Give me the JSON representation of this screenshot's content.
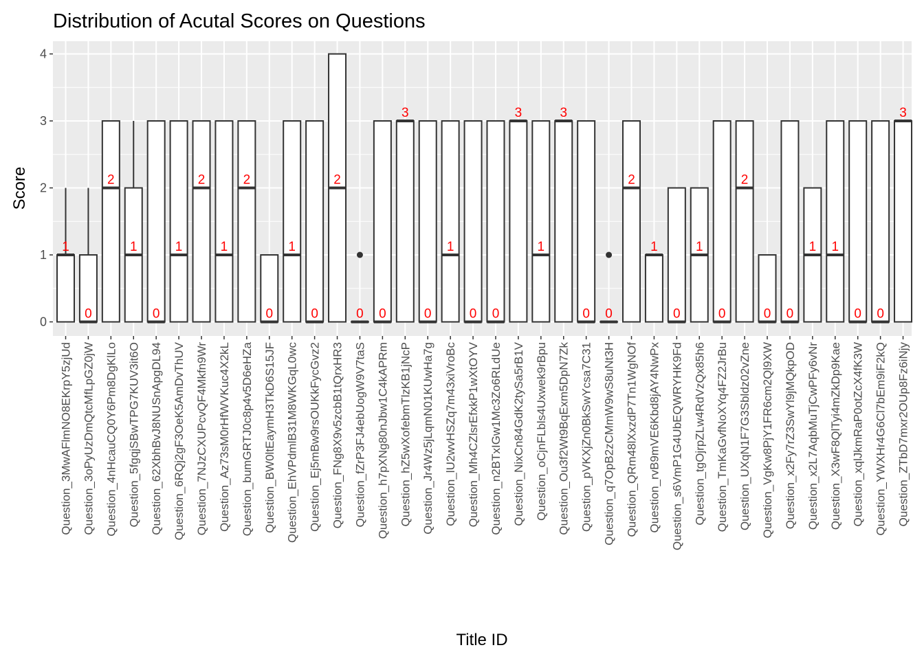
{
  "chart_data": {
    "type": "boxplot",
    "title": "Distribution of Acutal Scores on Questions",
    "xlabel": "Title ID",
    "ylabel": "Score",
    "ylim": [
      -0.18,
      4.18
    ],
    "yticks": [
      "0",
      "1",
      "2",
      "3",
      "4"
    ],
    "grid": true,
    "legend": "none",
    "colors": {
      "panel_background": "#ebebeb",
      "grid": "#ffffff",
      "box_fill": "#ffffff",
      "box_outline": "#333333",
      "median_label": "#ff0000",
      "tick_label": "#4d4d4d"
    },
    "categories": [
      "Question_3MwAFlmNO8EKrpY5zjUd",
      "Question_3oPyUzDmQtcMfLpGZ0jW",
      "Question_4nHcauCQ0Y6Pm8DgKlLo",
      "Question_5fgqjSBwTPG7KUV3it6O",
      "Question_62XbhBvJ8NUSnApgDL94",
      "Question_6RQj2gF3OeK5AmDvThUV",
      "Question_7NJzCXUPcvQF4Mkfn9Wr",
      "Question_Az73sM0rHfWVKuc4X2kL",
      "Question_bumGRTJ0c8p4v5D6eHZa",
      "Question_BW0ltEaymH3TkD6S15JF",
      "Question_EhVPdmlB31M8WKGqL0wc",
      "Question_Ej5mBw9rsOUKkFycGvz2",
      "Question_FNg8X9v5zcbB1tQrxHR3",
      "Question_fZrP3FJ4ebUogW9V7taS",
      "Question_h7pXNg80nJbw1C4kAPRm",
      "Question_hZ5wXofebmTlzKB1jNcP",
      "Question_Jr4Wz5jLqmN01KUwHa7g",
      "Question_lU2wvHSZq7m43xiVroBc",
      "Question_Mh4CZlsrEfxkP1wXtOYV",
      "Question_n2BTxIGw1Mc3Zo6RLdUe",
      "Question_NixCn84GdK2tySa5rB1V",
      "Question_oCjnFLbls4Uxwek9rBpu",
      "Question_Ou3f2Wt9BqExm5DpN7Zk",
      "Question_pVKXjZn0BkSwYcsa7C31",
      "Question_q7OpB2zCMmW9wS8uNt3H",
      "Question_QRm48lXxzdP7Tn1WgNOf",
      "Question_rvB9mVE6Kbd8jAY4NwPx",
      "Question_s6VmP1G4UbEQWRYHK9Fd",
      "Question_tgOjrpZLw4RdVzQx85h6",
      "Question_TmKaGvfNoXYq4FZ2JrBu",
      "Question_UXqN1F7G3Sbldz02vZne",
      "Question_VgKw8PjY1FR6cm2Ql9XW",
      "Question_x2Fy7rZ3SwYl9jMQkpOD",
      "Question_x2L7AqbMuTjCwPFy6vNr",
      "Question_X3wF8QlTyi4mZkDp9Kae",
      "Question_xqlJkmRaP0otZcX4fK3W",
      "Question_YWXHr4G6Cl7bEm9iF2kQ",
      "Question_ZTbD7mxr2OUp8Fz6iNjy"
    ],
    "boxes": [
      {
        "min": 0,
        "q1": 0,
        "median": 1,
        "q3": 1,
        "max": 2,
        "outliers": [],
        "median_label": "1"
      },
      {
        "min": 0,
        "q1": 0,
        "median": 0,
        "q3": 1,
        "max": 2,
        "outliers": [],
        "median_label": "0"
      },
      {
        "min": 0,
        "q1": 0,
        "median": 2,
        "q3": 3,
        "max": 3,
        "outliers": [],
        "median_label": "2"
      },
      {
        "min": 0,
        "q1": 0,
        "median": 1,
        "q3": 2,
        "max": 3,
        "outliers": [],
        "median_label": "1"
      },
      {
        "min": 0,
        "q1": 0,
        "median": 0,
        "q3": 3,
        "max": 3,
        "outliers": [],
        "median_label": "0"
      },
      {
        "min": 0,
        "q1": 0,
        "median": 1,
        "q3": 3,
        "max": 3,
        "outliers": [],
        "median_label": "1"
      },
      {
        "min": 0,
        "q1": 0,
        "median": 2,
        "q3": 3,
        "max": 3,
        "outliers": [],
        "median_label": "2"
      },
      {
        "min": 0,
        "q1": 0,
        "median": 1,
        "q3": 3,
        "max": 3,
        "outliers": [],
        "median_label": "1"
      },
      {
        "min": 0,
        "q1": 0,
        "median": 2,
        "q3": 3,
        "max": 3,
        "outliers": [],
        "median_label": "2"
      },
      {
        "min": 0,
        "q1": 0,
        "median": 0,
        "q3": 1,
        "max": 1,
        "outliers": [],
        "median_label": "0"
      },
      {
        "min": 0,
        "q1": 0,
        "median": 1,
        "q3": 3,
        "max": 3,
        "outliers": [],
        "median_label": "1"
      },
      {
        "min": 0,
        "q1": 0,
        "median": 0,
        "q3": 3,
        "max": 3,
        "outliers": [],
        "median_label": "0"
      },
      {
        "min": 0,
        "q1": 0,
        "median": 2,
        "q3": 4,
        "max": 4,
        "outliers": [],
        "median_label": "2"
      },
      {
        "min": 0,
        "q1": 0,
        "median": 0,
        "q3": 0,
        "max": 0,
        "outliers": [
          1
        ],
        "median_label": "0"
      },
      {
        "min": 0,
        "q1": 0,
        "median": 0,
        "q3": 3,
        "max": 3,
        "outliers": [],
        "median_label": "0"
      },
      {
        "min": 0,
        "q1": 0,
        "median": 3,
        "q3": 3,
        "max": 3,
        "outliers": [],
        "median_label": "3"
      },
      {
        "min": 0,
        "q1": 0,
        "median": 0,
        "q3": 3,
        "max": 3,
        "outliers": [],
        "median_label": "0"
      },
      {
        "min": 0,
        "q1": 0,
        "median": 1,
        "q3": 3,
        "max": 3,
        "outliers": [],
        "median_label": "1"
      },
      {
        "min": 0,
        "q1": 0,
        "median": 0,
        "q3": 3,
        "max": 3,
        "outliers": [],
        "median_label": "0"
      },
      {
        "min": 0,
        "q1": 0,
        "median": 0,
        "q3": 3,
        "max": 3,
        "outliers": [],
        "median_label": "0"
      },
      {
        "min": 0,
        "q1": 0,
        "median": 3,
        "q3": 3,
        "max": 3,
        "outliers": [],
        "median_label": "3"
      },
      {
        "min": 0,
        "q1": 0,
        "median": 1,
        "q3": 3,
        "max": 3,
        "outliers": [],
        "median_label": "1"
      },
      {
        "min": 0,
        "q1": 0,
        "median": 3,
        "q3": 3,
        "max": 3,
        "outliers": [],
        "median_label": "3"
      },
      {
        "min": 0,
        "q1": 0,
        "median": 0,
        "q3": 3,
        "max": 3,
        "outliers": [],
        "median_label": "0"
      },
      {
        "min": 0,
        "q1": 0,
        "median": 0,
        "q3": 0,
        "max": 0,
        "outliers": [
          1
        ],
        "median_label": "0"
      },
      {
        "min": 0,
        "q1": 0,
        "median": 2,
        "q3": 3,
        "max": 3,
        "outliers": [],
        "median_label": "2"
      },
      {
        "min": 0,
        "q1": 0,
        "median": 1,
        "q3": 1,
        "max": 1,
        "outliers": [],
        "median_label": "1"
      },
      {
        "min": 0,
        "q1": 0,
        "median": 0,
        "q3": 2,
        "max": 2,
        "outliers": [],
        "median_label": "0"
      },
      {
        "min": 0,
        "q1": 0,
        "median": 1,
        "q3": 2,
        "max": 2,
        "outliers": [],
        "median_label": "1"
      },
      {
        "min": 0,
        "q1": 0,
        "median": 0,
        "q3": 3,
        "max": 3,
        "outliers": [],
        "median_label": "0"
      },
      {
        "min": 0,
        "q1": 0,
        "median": 2,
        "q3": 3,
        "max": 3,
        "outliers": [],
        "median_label": "2"
      },
      {
        "min": 0,
        "q1": 0,
        "median": 0,
        "q3": 1,
        "max": 1,
        "outliers": [],
        "median_label": "0"
      },
      {
        "min": 0,
        "q1": 0,
        "median": 0,
        "q3": 3,
        "max": 3,
        "outliers": [],
        "median_label": "0"
      },
      {
        "min": 0,
        "q1": 0,
        "median": 1,
        "q3": 2,
        "max": 2,
        "outliers": [],
        "median_label": "1"
      },
      {
        "min": 0,
        "q1": 0,
        "median": 1,
        "q3": 3,
        "max": 3,
        "outliers": [],
        "median_label": "1"
      },
      {
        "min": 0,
        "q1": 0,
        "median": 0,
        "q3": 3,
        "max": 3,
        "outliers": [],
        "median_label": "0"
      },
      {
        "min": 0,
        "q1": 0,
        "median": 0,
        "q3": 3,
        "max": 3,
        "outliers": [],
        "median_label": "0"
      },
      {
        "min": 0,
        "q1": 0,
        "median": 3,
        "q3": 3,
        "max": 3,
        "outliers": [],
        "median_label": "3"
      }
    ]
  }
}
